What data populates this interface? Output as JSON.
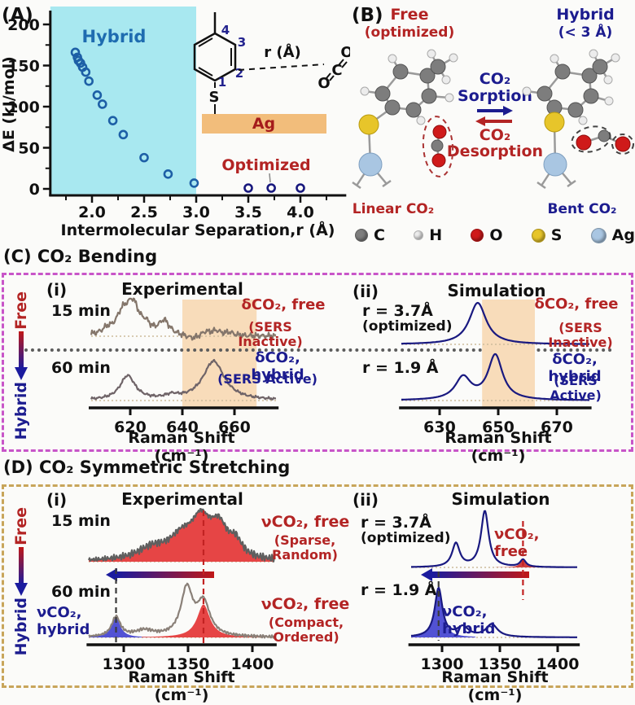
{
  "colors": {
    "hybrid_bg": "#a8e8f0",
    "band": "#f8dcba",
    "scatter_hybrid": "#1d5fa6",
    "scatter_optimized": "#17177d",
    "red": "#b32424",
    "navy": "#1c1c8f",
    "box_c": "#c855c8",
    "box_d": "#c8a55a",
    "ag_bar": "#f2bd7b"
  },
  "panelA": {
    "tag": "(A)",
    "inset": {
      "n1": "1",
      "n2": "2",
      "n3": "3",
      "n4": "4",
      "s": "S",
      "ag": "Ag",
      "r_label": "r (Å)",
      "o1": "O",
      "c": "C",
      "o2": "O"
    }
  },
  "panelB": {
    "tag": "(B)",
    "free_title": "Free",
    "free_sub": "(optimized)",
    "hybrid_title": "Hybrid",
    "hybrid_sub": "(< 3 Å)",
    "sorb_gas": "CO₂",
    "sorb": "Sorption",
    "desorb_gas": "CO₂",
    "desorb": "Desorption",
    "linear": "Linear CO₂",
    "bent": "Bent CO₂",
    "legend": [
      {
        "symbol": "C",
        "color": "#7d7d7d",
        "size": 14
      },
      {
        "symbol": "H",
        "color": "#ececec",
        "size": 10
      },
      {
        "symbol": "O",
        "color": "#cf1a1a",
        "size": 14
      },
      {
        "symbol": "S",
        "color": "#e7c52a",
        "size": 15
      },
      {
        "symbol": "Ag",
        "color": "#a9c6e2",
        "size": 17
      }
    ]
  },
  "sectionC": {
    "title": "(C) CO₂ Bending",
    "free": "Free",
    "hybrid": "Hybrid"
  },
  "sectionD": {
    "title": "(D) CO₂ Symmetric Stretching",
    "free": "Free",
    "hybrid": "Hybrid"
  },
  "chart_data": [
    {
      "type": "scatter",
      "xlabel": "Intermolecular Separation,r (Å)",
      "ylabel": "ΔE (kJ/mol)",
      "xticks": [
        2.0,
        2.5,
        3.0,
        3.5,
        4.0
      ],
      "xtick_labels": [
        "2.0",
        "2.5",
        "3.0",
        "3.5",
        "4.0"
      ],
      "xminor": [
        1.75,
        2.25,
        2.75,
        3.25,
        3.75,
        4.25
      ],
      "yticks": [
        0,
        50,
        100,
        150,
        200
      ],
      "yminor": [
        25,
        75,
        125,
        175
      ],
      "xlim": [
        1.6,
        4.44
      ],
      "ylim": [
        -8,
        215
      ],
      "hybrid_region": [
        1.6,
        3.0
      ],
      "points": [
        [
          1.84,
          166
        ],
        [
          1.86,
          160
        ],
        [
          1.87,
          156
        ],
        [
          1.89,
          153
        ],
        [
          1.91,
          148
        ],
        [
          1.94,
          142
        ],
        [
          1.97,
          131
        ],
        [
          2.05,
          114
        ],
        [
          2.1,
          103
        ],
        [
          2.2,
          83
        ],
        [
          2.3,
          66
        ],
        [
          2.5,
          38
        ],
        [
          2.73,
          18
        ],
        [
          2.98,
          7
        ],
        [
          3.5,
          1
        ],
        [
          3.72,
          1
        ],
        [
          4.0,
          1
        ]
      ],
      "annotations": {
        "hybrid": "Hybrid",
        "optimized": "Optimized"
      }
    },
    {
      "type": "line",
      "panel": "(i)",
      "title": "Experimental",
      "xlabel": "Raman Shift (cm⁻¹)",
      "xrange": [
        605,
        676
      ],
      "xticks": [
        620,
        640,
        660
      ],
      "band": [
        640,
        668.5
      ],
      "traces": [
        {
          "label": "15 min",
          "color": "#84766b",
          "noise": 1,
          "peaks": [
            [
              611,
              0.14,
              2
            ],
            [
              617,
              0.6,
              3
            ],
            [
              621,
              0.95,
              3
            ],
            [
              626,
              0.22,
              2
            ],
            [
              633,
              0.45,
              2.5
            ],
            [
              644,
              -0.12,
              3
            ],
            [
              649,
              0.13,
              2
            ],
            [
              653,
              0.15,
              2
            ],
            [
              658,
              0.1,
              2
            ]
          ]
        },
        {
          "label": "60 min",
          "color": "#6f6468",
          "noise": 0.35,
          "peaks": [
            [
              619,
              0.62,
              3.5
            ],
            [
              636,
              0.09,
              3
            ],
            [
              652,
              1.0,
              5
            ]
          ]
        }
      ],
      "label_free": "δCO₂, free",
      "label_free_sub": "(SERS Inactive)",
      "label_hybrid": "δCO₂, hybrid",
      "label_hybrid_sub": "(SERS Active)"
    },
    {
      "type": "line",
      "panel": "(ii)",
      "title": "Simulation",
      "xlabel": "Raman Shift (cm⁻¹)",
      "xrange": [
        617,
        681
      ],
      "xticks": [
        630,
        650,
        670
      ],
      "band": [
        644.5,
        662.5
      ],
      "traces": [
        {
          "label": "r = 3.7Å",
          "sublabel": "(optimized)",
          "color": "#191980",
          "peaks": [
            [
              643,
              1.0,
              3.5
            ]
          ]
        },
        {
          "label": "r = 1.9 Å",
          "color": "#191980",
          "peaks": [
            [
              638,
              0.5,
              3.2
            ],
            [
              649,
              1.0,
              3
            ]
          ]
        }
      ],
      "label_free": "δCO₂, free",
      "label_free_sub": "(SERS Inactive)",
      "label_hybrid": "δCO₂, hybrid",
      "label_hybrid_sub": "(SERS Active)"
    },
    {
      "type": "line",
      "panel": "(i)",
      "title": "Experimental",
      "xlabel": "Raman Shift (cm⁻¹)",
      "xrange": [
        1273,
        1417
      ],
      "xticks": [
        1300,
        1350,
        1400
      ],
      "traces": [
        {
          "label": "15 min",
          "color": "#5f5f5f",
          "noise": 1,
          "fill": "#e64545",
          "peaks": [
            [
              1322,
              0.3,
              14
            ],
            [
              1345,
              0.55,
              12
            ],
            [
              1360,
              0.95,
              9
            ],
            [
              1374,
              0.8,
              8
            ],
            [
              1387,
              0.4,
              6
            ]
          ]
        },
        {
          "label": "60 min",
          "color": "#8a8078",
          "noise": 0.3,
          "peaks": [
            [
              1294,
              0.42,
              4,
              "#5252d4"
            ],
            [
              1316,
              0.13,
              9
            ],
            [
              1349,
              1.0,
              5.5
            ],
            [
              1362,
              0.7,
              6,
              "#e64545"
            ]
          ]
        }
      ],
      "markers": [
        {
          "x": 1294,
          "color": "#3a3a3a"
        },
        {
          "x": 1362,
          "color": "#c22222"
        }
      ],
      "label_hybrid": "νCO₂, hybrid",
      "label_free_1": "νCO₂, free",
      "label_free_1_sub": "(Sparse, Random)",
      "label_free_2": "νCO₂, free",
      "label_free_2_sub": "(Compact, Ordered)"
    },
    {
      "type": "line",
      "panel": "(ii)",
      "title": "Simulation",
      "xlabel": "Raman Shift (cm⁻¹)",
      "xrange": [
        1273,
        1417
      ],
      "xticks": [
        1300,
        1350,
        1400
      ],
      "traces": [
        {
          "label": "r = 3.7Å",
          "sublabel": "(optimized)",
          "color": "#191980",
          "peaks": [
            [
              1312,
              0.42,
              4
            ],
            [
              1337,
              1.0,
              4
            ],
            [
              1370,
              0.13,
              3,
              "#d04040"
            ]
          ]
        },
        {
          "label": "r = 1.9 Å",
          "color": "#191980",
          "peaks": [
            [
              1297,
              1.0,
              4,
              "#5252d4"
            ],
            [
              1318,
              0.2,
              6
            ],
            [
              1343,
              0.26,
              6
            ]
          ]
        }
      ],
      "markers": [
        {
          "x": 1370,
          "color": "#c22222"
        },
        {
          "x": 1297,
          "color": "#3a3a3a"
        }
      ],
      "label_free": "νCO₂, free",
      "label_hybrid": "νCO₂, hybrid"
    }
  ]
}
